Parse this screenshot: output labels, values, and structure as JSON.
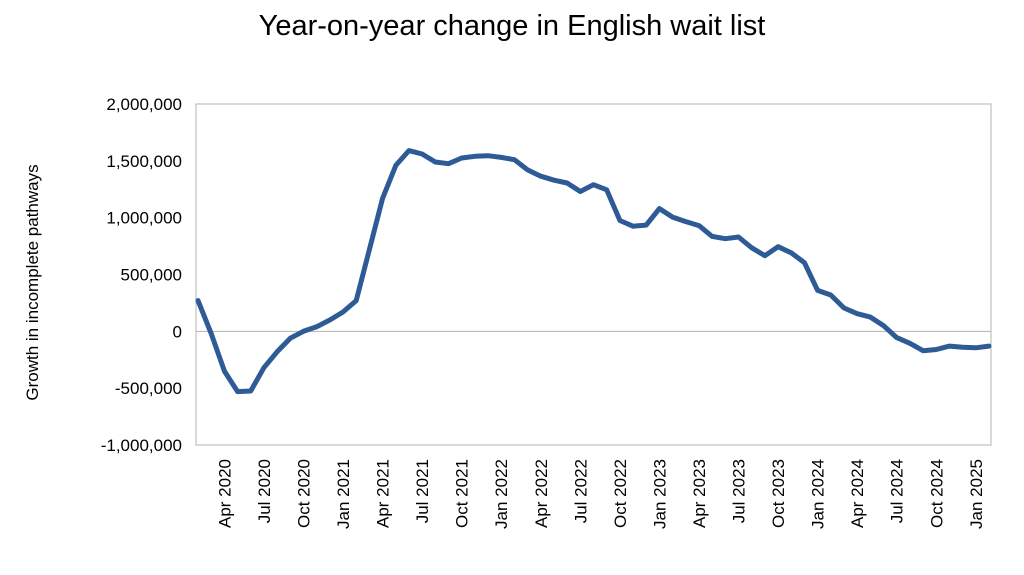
{
  "chart_data": {
    "type": "line",
    "title": "Year-on-year change in English wait list",
    "ylabel": "Growth in incomplete pathways",
    "xlabel": "",
    "ylim": [
      -1000000,
      2000000
    ],
    "y_ticks": [
      2000000,
      1500000,
      1000000,
      500000,
      0,
      -500000,
      -1000000
    ],
    "y_tick_labels": [
      "2,000,000",
      "1,500,000",
      "1,000,000",
      "500,000",
      "0",
      "-500,000",
      "-1,000,000"
    ],
    "x_tick_labels": [
      "Apr 2020",
      "Jul 2020",
      "Oct 2020",
      "Jan 2021",
      "Apr 2021",
      "Jul 2021",
      "Oct 2021",
      "Jan 2022",
      "Apr 2022",
      "Jul 2022",
      "Oct 2022",
      "Jan 2023",
      "Apr 2023",
      "Jul 2023",
      "Oct 2023",
      "Jan 2024",
      "Apr 2024",
      "Jul 2024",
      "Oct 2024",
      "Jan 2025"
    ],
    "grid": false,
    "legend": "none",
    "line_color": "#2E5B95",
    "series": [
      {
        "x": [
          "Feb 2020",
          "Mar 2020",
          "Apr 2020",
          "May 2020",
          "Jun 2020",
          "Jul 2020",
          "Aug 2020",
          "Sep 2020",
          "Oct 2020",
          "Nov 2020",
          "Dec 2020",
          "Jan 2021",
          "Feb 2021",
          "Mar 2021",
          "Apr 2021",
          "May 2021",
          "Jun 2021",
          "Jul 2021",
          "Aug 2021",
          "Sep 2021",
          "Oct 2021",
          "Nov 2021",
          "Dec 2021",
          "Jan 2022",
          "Feb 2022",
          "Mar 2022",
          "Apr 2022",
          "May 2022",
          "Jun 2022",
          "Jul 2022",
          "Aug 2022",
          "Sep 2022",
          "Oct 2022",
          "Nov 2022",
          "Dec 2022",
          "Jan 2023",
          "Feb 2023",
          "Mar 2023",
          "Apr 2023",
          "May 2023",
          "Jun 2023",
          "Jul 2023",
          "Aug 2023",
          "Sep 2023",
          "Oct 2023",
          "Nov 2023",
          "Dec 2023",
          "Jan 2024",
          "Feb 2024",
          "Mar 2024",
          "Apr 2024",
          "May 2024",
          "Jun 2024",
          "Jul 2024",
          "Aug 2024",
          "Sep 2024",
          "Oct 2024",
          "Nov 2024",
          "Dec 2024",
          "Jan 2025",
          "Feb 2025"
        ],
        "values": [
          270000,
          -20000,
          -350000,
          -530000,
          -525000,
          -320000,
          -180000,
          -60000,
          0,
          40000,
          100000,
          170000,
          270000,
          720000,
          1170000,
          1460000,
          1590000,
          1560000,
          1490000,
          1475000,
          1525000,
          1540000,
          1545000,
          1530000,
          1510000,
          1420000,
          1365000,
          1330000,
          1305000,
          1230000,
          1290000,
          1245000,
          975000,
          925000,
          935000,
          1080000,
          1005000,
          965000,
          930000,
          835000,
          815000,
          830000,
          735000,
          665000,
          745000,
          690000,
          605000,
          360000,
          320000,
          205000,
          155000,
          125000,
          50000,
          -55000,
          -105000,
          -170000,
          -160000,
          -130000,
          -140000,
          -145000,
          -130000
        ]
      }
    ]
  }
}
